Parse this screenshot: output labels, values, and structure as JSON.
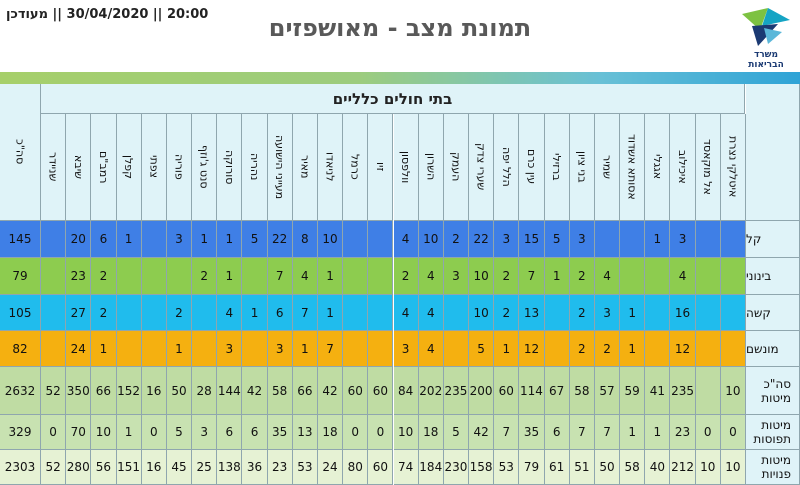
{
  "header": {
    "updated": "20:00 || 30/04/2020 || מעודכן",
    "title": "תמונת מצב - מאושפזים",
    "logo_text_1": "משרד",
    "logo_text_2": "הבריאות"
  },
  "table": {
    "section_title": "בתי חולים כלליים",
    "total_col_header": "סה\"כ",
    "hospitals": [
      "איטלקי נצרת",
      "אל מוקאסד",
      "איכילוב",
      "אגגלי",
      "אסותא אשדוד",
      "שמיר",
      "בני ציון",
      "ברזילי",
      "עין כרם",
      "הלל יפה",
      "שערי צדק",
      "העמק",
      "השרון",
      "וולפסון",
      "זיו",
      "כרמל",
      "לניאדו",
      "מאיר",
      "מעייני הישועה",
      "נהריה",
      "סורוקה",
      "סנט ג'וזף",
      "פוריה",
      "צפתי",
      "קפלן",
      "רמב\"ם",
      "שיבא",
      "שניידר"
    ],
    "rows": [
      {
        "label": "קל",
        "color": "#3f7fe6",
        "total": "145",
        "values": [
          "",
          "",
          "3",
          "1",
          "",
          "",
          "3",
          "5",
          "15",
          "3",
          "22",
          "2",
          "10",
          "4",
          "",
          "",
          "10",
          "8",
          "22",
          "5",
          "1",
          "1",
          "3",
          "",
          "1",
          "6",
          "20",
          ""
        ]
      },
      {
        "label": "בינוני",
        "color": "#8dcc4f",
        "total": "79",
        "values": [
          "",
          "",
          "4",
          "",
          "",
          "4",
          "2",
          "1",
          "7",
          "2",
          "10",
          "3",
          "4",
          "2",
          "",
          "",
          "1",
          "4",
          "7",
          "",
          "1",
          "2",
          "",
          "",
          "",
          "2",
          "23",
          ""
        ]
      },
      {
        "label": "קשה",
        "color": "#20bced",
        "total": "105",
        "values": [
          "",
          "",
          "16",
          "",
          "1",
          "3",
          "2",
          "",
          "13",
          "2",
          "10",
          "",
          "4",
          "4",
          "",
          "",
          "1",
          "7",
          "6",
          "1",
          "4",
          "",
          "2",
          "",
          "",
          "2",
          "27",
          ""
        ]
      },
      {
        "label": "מונשם",
        "color": "#f5b010",
        "total": "82",
        "values": [
          "",
          "",
          "12",
          "",
          "1",
          "2",
          "2",
          "",
          "12",
          "1",
          "5",
          "",
          "4",
          "3",
          "",
          "",
          "7",
          "1",
          "3",
          "",
          "3",
          "",
          "1",
          "",
          "",
          "1",
          "24",
          ""
        ]
      },
      {
        "label": "סה\"כ מיטות",
        "color": "#bfdca3",
        "total": "2632",
        "values": [
          "10",
          "",
          "235",
          "41",
          "59",
          "57",
          "58",
          "67",
          "114",
          "60",
          "200",
          "235",
          "202",
          "84",
          "60",
          "60",
          "42",
          "66",
          "58",
          "42",
          "144",
          "28",
          "50",
          "16",
          "152",
          "66",
          "350",
          "52"
        ]
      },
      {
        "label": "מיטות תפוסות",
        "color": "#c8e2b1",
        "total": "329",
        "values": [
          "0",
          "0",
          "23",
          "1",
          "1",
          "7",
          "7",
          "6",
          "35",
          "7",
          "42",
          "5",
          "18",
          "10",
          "0",
          "0",
          "18",
          "13",
          "35",
          "6",
          "6",
          "3",
          "5",
          "0",
          "1",
          "10",
          "70",
          "0"
        ]
      },
      {
        "label": "מיטות פנויות",
        "color": "#e6f2d4",
        "total": "2303",
        "values": [
          "10",
          "10",
          "212",
          "40",
          "58",
          "50",
          "51",
          "61",
          "79",
          "53",
          "158",
          "230",
          "184",
          "74",
          "60",
          "80",
          "24",
          "53",
          "23",
          "36",
          "138",
          "25",
          "45",
          "16",
          "151",
          "56",
          "280",
          "52"
        ]
      }
    ]
  },
  "colors": {
    "header_fill": "#dff3f8",
    "grid_line": "#8fa6ae",
    "title_text": "#595959",
    "logo_green": "#7dc242",
    "logo_teal": "#15a4c4",
    "logo_blue": "#1b3a73"
  },
  "icons": [
    "ministry-of-health-logo"
  ]
}
